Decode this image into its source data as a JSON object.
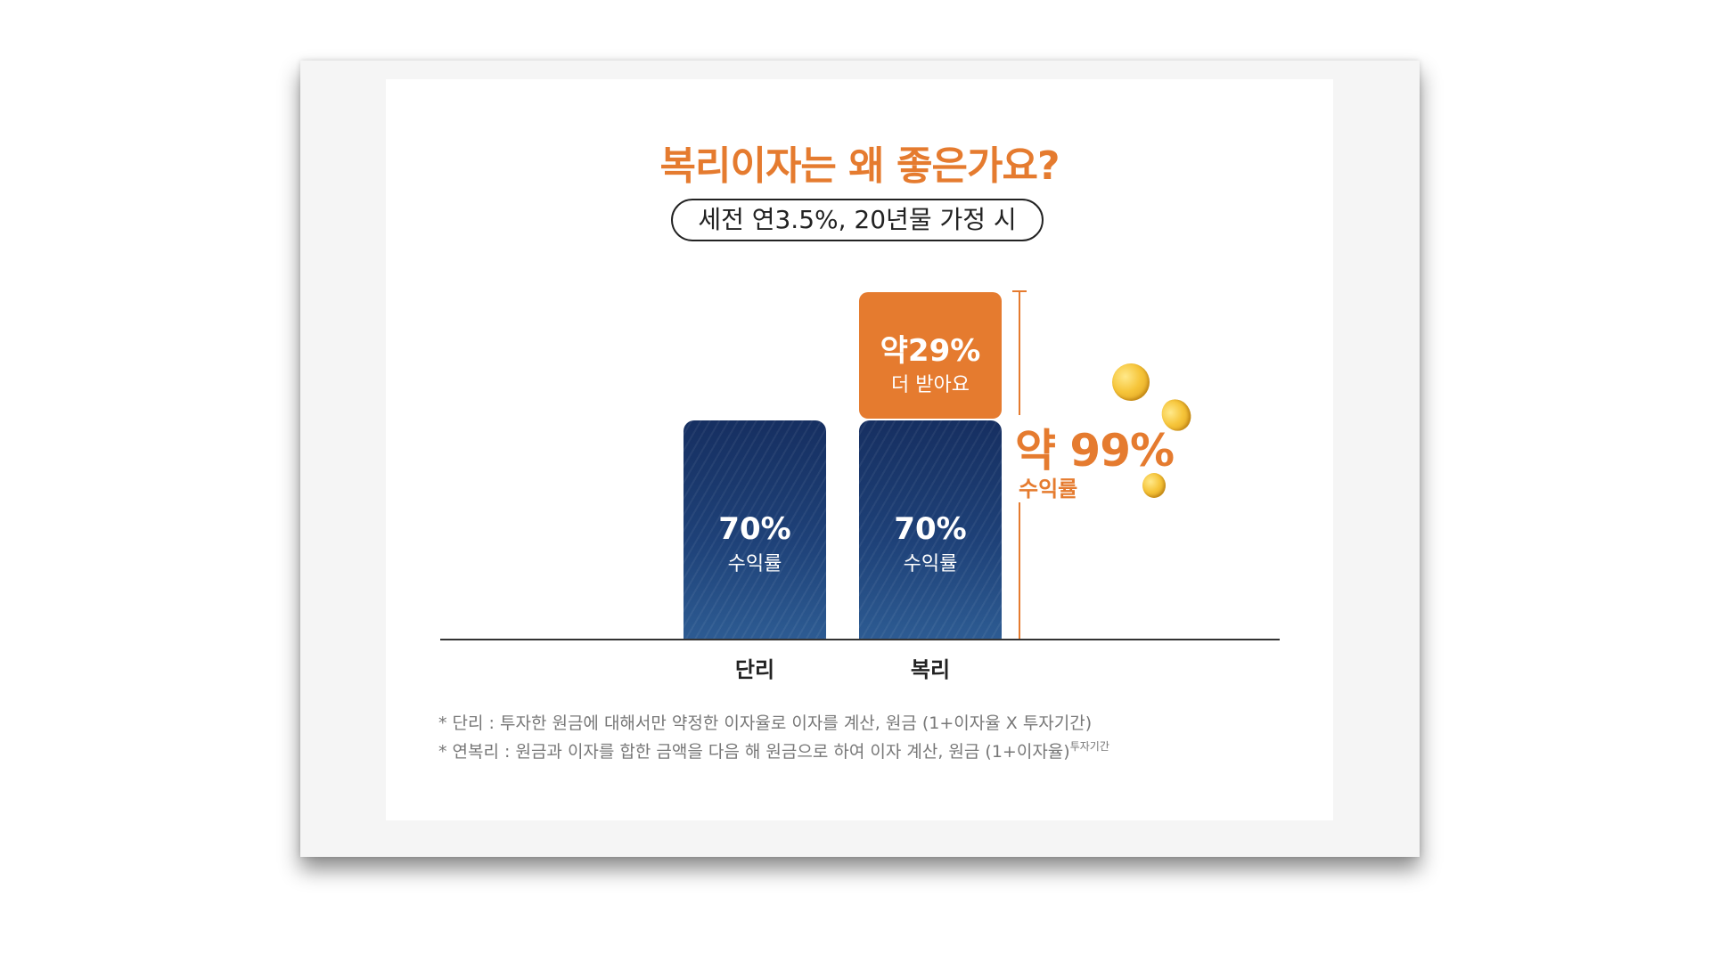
{
  "chart_data": {
    "type": "bar",
    "title": "복리이자는 왜 좋은가요?",
    "subtitle": "세전 연3.5%, 20년물 가정 시",
    "categories": [
      "단리",
      "복리"
    ],
    "series": [
      {
        "values": [
          70,
          70
        ],
        "value_labels": [
          "70%",
          "70%"
        ],
        "caption": "수익률",
        "color": "#1f3f73"
      },
      {
        "values": [
          0,
          29
        ],
        "value_labels": [
          "",
          "약29%"
        ],
        "caption": "더 받아요",
        "color": "#e57b2f"
      }
    ],
    "total_annotation": {
      "value": 99,
      "label": "약 99%",
      "caption": "수익률",
      "color": "#e57b2f"
    },
    "ylim": [
      0,
      100
    ]
  },
  "notes": {
    "simple": "* 단리 : 투자한 원금에 대해서만 약정한 이자율로 이자를 계산, 원금 (1+이자율 X 투자기간)",
    "compound": "* 연복리 : 원금과 이자를 합한 금액을 다음 해 원금으로 하여 이자 계산, 원금 (1+이자율)",
    "compound_exponent": "투자기간"
  },
  "decor": {
    "coin": "coin-icon",
    "coin_count": 3
  }
}
